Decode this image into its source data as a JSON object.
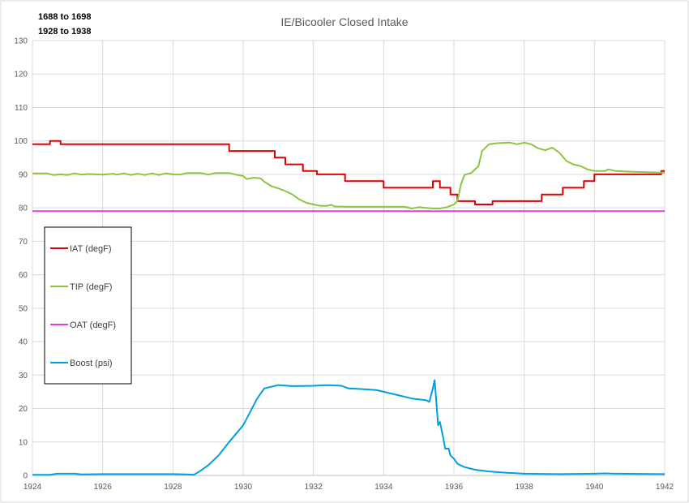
{
  "notes": [
    "1688 to 1698",
    "1928 to 1938"
  ],
  "chart_data": {
    "type": "line",
    "title": "IE/Bicooler Closed Intake",
    "xlabel": "",
    "ylabel": "",
    "xlim": [
      1924,
      1942
    ],
    "ylim": [
      0,
      130
    ],
    "x_ticks": [
      "1924",
      "1926",
      "1928",
      "1930",
      "1932",
      "1934",
      "1936",
      "1938",
      "1940",
      "1942"
    ],
    "y_ticks": [
      "0",
      "10",
      "20",
      "30",
      "40",
      "50",
      "60",
      "70",
      "80",
      "90",
      "100",
      "110",
      "120",
      "130"
    ],
    "grid": true,
    "legend_position": "left-middle",
    "series": [
      {
        "name": "IAT (degF)",
        "color": "#e00000",
        "points": [
          [
            1924,
            99
          ],
          [
            1924.5,
            99
          ],
          [
            1924.5,
            100
          ],
          [
            1924.8,
            100
          ],
          [
            1924.8,
            99
          ],
          [
            1929.6,
            99
          ],
          [
            1929.6,
            97
          ],
          [
            1930.9,
            97
          ],
          [
            1930.9,
            95
          ],
          [
            1931.2,
            95
          ],
          [
            1931.2,
            93
          ],
          [
            1931.7,
            93
          ],
          [
            1931.7,
            91
          ],
          [
            1932.1,
            91
          ],
          [
            1932.1,
            90
          ],
          [
            1932.9,
            90
          ],
          [
            1932.9,
            88
          ],
          [
            1934,
            88
          ],
          [
            1934,
            86
          ],
          [
            1935.4,
            86
          ],
          [
            1935.4,
            88
          ],
          [
            1935.6,
            88
          ],
          [
            1935.6,
            86
          ],
          [
            1935.9,
            86
          ],
          [
            1935.9,
            84
          ],
          [
            1936.1,
            84
          ],
          [
            1936.1,
            82
          ],
          [
            1936.6,
            82
          ],
          [
            1936.6,
            81
          ],
          [
            1937.1,
            81
          ],
          [
            1937.1,
            82
          ],
          [
            1938.5,
            82
          ],
          [
            1938.5,
            84
          ],
          [
            1939.1,
            84
          ],
          [
            1939.1,
            86
          ],
          [
            1939.7,
            86
          ],
          [
            1939.7,
            88
          ],
          [
            1940,
            88
          ],
          [
            1940,
            90
          ],
          [
            1941.9,
            90
          ],
          [
            1941.9,
            91
          ],
          [
            1942,
            91
          ]
        ]
      },
      {
        "name": "TIP (degF)",
        "color": "#8cc63f",
        "points": [
          [
            1924,
            90.3
          ],
          [
            1924.4,
            90.3
          ],
          [
            1924.6,
            89.8
          ],
          [
            1924.8,
            90
          ],
          [
            1925,
            89.8
          ],
          [
            1925.2,
            90.3
          ],
          [
            1925.4,
            89.9
          ],
          [
            1925.6,
            90.1
          ],
          [
            1926,
            89.9
          ],
          [
            1926.3,
            90.2
          ],
          [
            1926.4,
            89.9
          ],
          [
            1926.6,
            90.3
          ],
          [
            1926.8,
            89.8
          ],
          [
            1927,
            90.2
          ],
          [
            1927.2,
            89.8
          ],
          [
            1927.4,
            90.3
          ],
          [
            1927.6,
            89.8
          ],
          [
            1927.8,
            90.3
          ],
          [
            1928,
            90
          ],
          [
            1928.2,
            89.9
          ],
          [
            1928.4,
            90.4
          ],
          [
            1928.8,
            90.4
          ],
          [
            1929,
            89.9
          ],
          [
            1929.2,
            90.4
          ],
          [
            1929.6,
            90.4
          ],
          [
            1929.8,
            89.9
          ],
          [
            1930,
            89.5
          ],
          [
            1930.1,
            88.6
          ],
          [
            1930.3,
            89
          ],
          [
            1930.5,
            88.8
          ],
          [
            1930.6,
            87.8
          ],
          [
            1930.8,
            86.5
          ],
          [
            1931,
            85.8
          ],
          [
            1931.2,
            85
          ],
          [
            1931.4,
            84
          ],
          [
            1931.6,
            82.5
          ],
          [
            1931.8,
            81.5
          ],
          [
            1932.0,
            81
          ],
          [
            1932.2,
            80.6
          ],
          [
            1932.4,
            80.6
          ],
          [
            1932.5,
            80.9
          ],
          [
            1932.6,
            80.4
          ],
          [
            1933,
            80.3
          ],
          [
            1934,
            80.3
          ],
          [
            1934.6,
            80.3
          ],
          [
            1934.8,
            79.8
          ],
          [
            1935,
            80.2
          ],
          [
            1935.2,
            80
          ],
          [
            1935.4,
            79.8
          ],
          [
            1935.6,
            79.8
          ],
          [
            1935.8,
            80.2
          ],
          [
            1936,
            81
          ],
          [
            1936.1,
            82
          ],
          [
            1936.2,
            87
          ],
          [
            1936.3,
            89.8
          ],
          [
            1936.5,
            90.5
          ],
          [
            1936.7,
            92.5
          ],
          [
            1936.8,
            97
          ],
          [
            1937,
            99
          ],
          [
            1937.2,
            99.3
          ],
          [
            1937.6,
            99.5
          ],
          [
            1937.8,
            99
          ],
          [
            1938,
            99.5
          ],
          [
            1938.2,
            99
          ],
          [
            1938.4,
            97.8
          ],
          [
            1938.6,
            97.2
          ],
          [
            1938.8,
            98
          ],
          [
            1939,
            96.5
          ],
          [
            1939.2,
            94
          ],
          [
            1939.4,
            93
          ],
          [
            1939.6,
            92.5
          ],
          [
            1939.8,
            91.5
          ],
          [
            1940,
            91
          ],
          [
            1940.3,
            91
          ],
          [
            1940.4,
            91.5
          ],
          [
            1940.6,
            91
          ],
          [
            1941,
            90.8
          ],
          [
            1942,
            90.5
          ]
        ]
      },
      {
        "name": "OAT (degF)",
        "color": "#e040e0",
        "points": [
          [
            1924,
            79
          ],
          [
            1942,
            79
          ]
        ]
      },
      {
        "name": "Boost (psi)",
        "color": "#00a0e0",
        "points": [
          [
            1924,
            0.2
          ],
          [
            1924.5,
            0.2
          ],
          [
            1924.7,
            0.5
          ],
          [
            1925.2,
            0.5
          ],
          [
            1925.4,
            0.3
          ],
          [
            1926,
            0.4
          ],
          [
            1928,
            0.4
          ],
          [
            1928.4,
            0.3
          ],
          [
            1928.6,
            0.2
          ],
          [
            1928.8,
            1.5
          ],
          [
            1929,
            3
          ],
          [
            1929.3,
            6
          ],
          [
            1929.6,
            10
          ],
          [
            1930,
            15
          ],
          [
            1930.2,
            19
          ],
          [
            1930.4,
            23
          ],
          [
            1930.6,
            26
          ],
          [
            1930.8,
            26.5
          ],
          [
            1931,
            27
          ],
          [
            1931.4,
            26.7
          ],
          [
            1932,
            26.8
          ],
          [
            1932.4,
            27
          ],
          [
            1932.8,
            26.8
          ],
          [
            1933,
            26
          ],
          [
            1933.4,
            25.8
          ],
          [
            1933.8,
            25.5
          ],
          [
            1934,
            25
          ],
          [
            1934.4,
            24
          ],
          [
            1934.8,
            23
          ],
          [
            1935.2,
            22.5
          ],
          [
            1935.3,
            22
          ],
          [
            1935.4,
            26
          ],
          [
            1935.45,
            28.5
          ],
          [
            1935.5,
            22
          ],
          [
            1935.55,
            15
          ],
          [
            1935.6,
            16
          ],
          [
            1935.7,
            11
          ],
          [
            1935.75,
            8
          ],
          [
            1935.85,
            8
          ],
          [
            1935.9,
            6
          ],
          [
            1936,
            5
          ],
          [
            1936.1,
            3.5
          ],
          [
            1936.3,
            2.5
          ],
          [
            1936.6,
            1.7
          ],
          [
            1937,
            1.2
          ],
          [
            1937.5,
            0.8
          ],
          [
            1938,
            0.5
          ],
          [
            1939,
            0.4
          ],
          [
            1940,
            0.5
          ],
          [
            1940.3,
            0.6
          ],
          [
            1940.6,
            0.5
          ],
          [
            1942,
            0.4
          ]
        ]
      }
    ]
  }
}
